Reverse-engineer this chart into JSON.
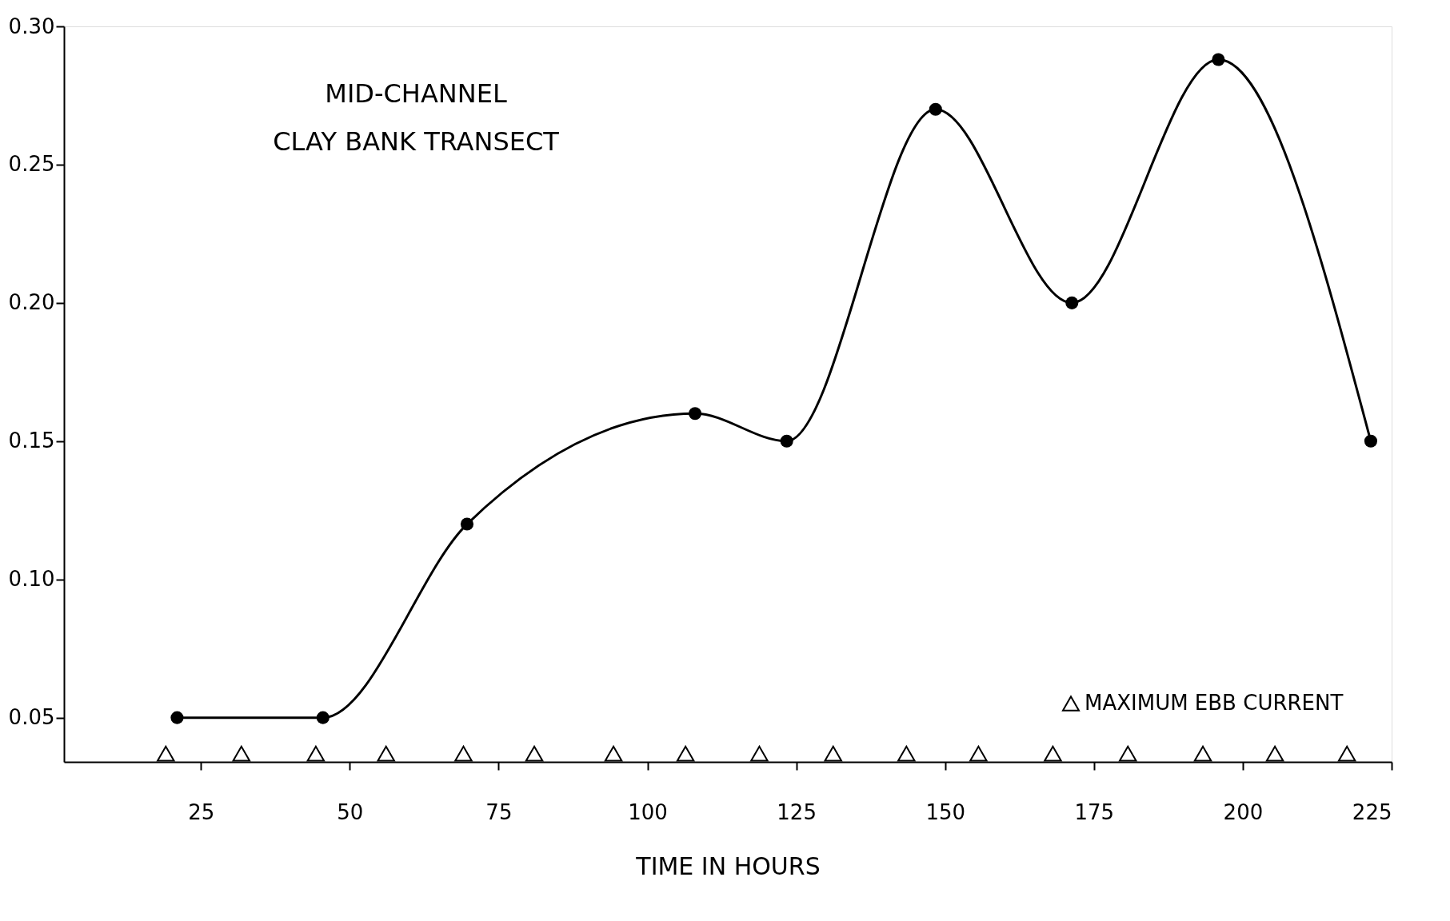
{
  "chart_data": {
    "type": "line",
    "title": "MID-CHANNEL",
    "subtitle": "CLAY BANK TRANSECT",
    "xlabel": "TIME IN HOURS",
    "series": [
      {
        "color": "#000000",
        "marker": "circle",
        "x": [
          21,
          45.5,
          69.7,
          108,
          123.4,
          148.4,
          171.3,
          195.9,
          221.5
        ],
        "values": [
          0.05,
          0.05,
          0.12,
          0.16,
          0.15,
          0.27,
          0.2,
          0.288,
          0.15
        ]
      },
      {
        "type": "scatter",
        "name": "MAXIMUM EBB CURRENT",
        "color": "#000000",
        "marker": "triangle",
        "x": [
          19.1,
          31.8,
          44.3,
          56.1,
          69.1,
          81.0,
          94.3,
          106.4,
          118.8,
          131.2,
          143.5,
          155.6,
          168.1,
          180.7,
          193.3,
          205.4,
          217.5
        ],
        "values": [
          0.037,
          0.037,
          0.037,
          0.037,
          0.037,
          0.037,
          0.037,
          0.037,
          0.037,
          0.037,
          0.037,
          0.037,
          0.037,
          0.037,
          0.037,
          0.037,
          0.037
        ]
      }
    ],
    "xlim": [
      2,
      225
    ],
    "xticks": [
      25,
      50,
      75,
      100,
      125,
      150,
      175,
      200,
      225
    ],
    "ylim": [
      0.034,
      0.3
    ],
    "yticks": [
      {
        "value": 0.05,
        "label": "0.05"
      },
      {
        "value": 0.1,
        "label": "0.10"
      },
      {
        "value": 0.15,
        "label": "0.15"
      },
      {
        "value": 0.2,
        "label": "0.20"
      },
      {
        "value": 0.25,
        "label": "0.25"
      },
      {
        "value": 0.3,
        "label": "0.30"
      }
    ],
    "grid": false,
    "legend": "bottom right"
  }
}
